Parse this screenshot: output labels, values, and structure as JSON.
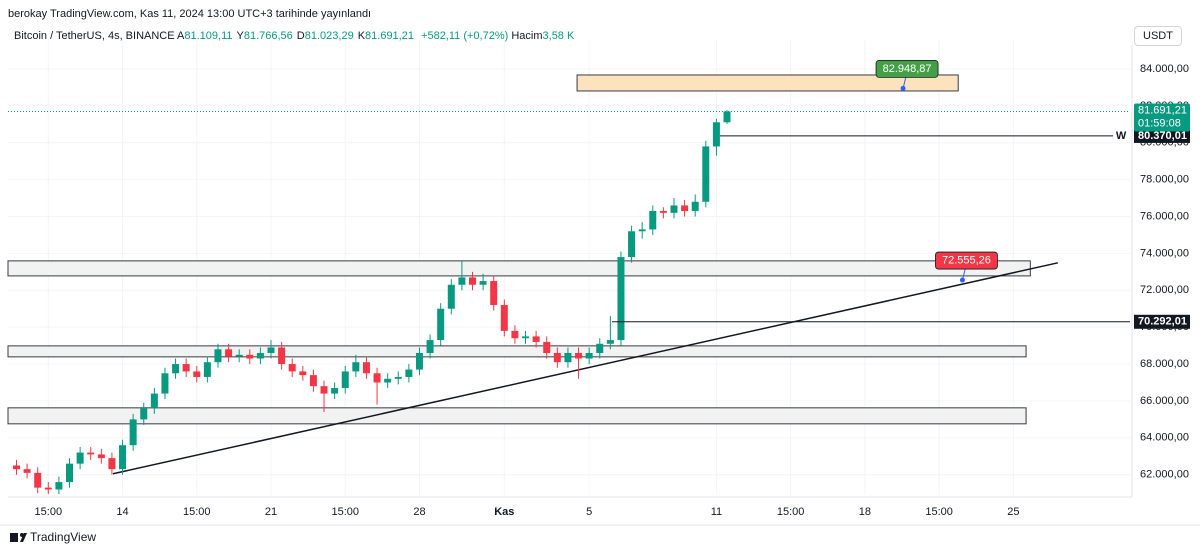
{
  "chart_data": {
    "type": "candlestick",
    "title": "berokay TradingView.com, Kas 11, 2024 13:00 UTC+3 tarihinde yayınlandı",
    "symbol": "Bitcoin / TetherUS, 4s, BINANCE",
    "ohlc_fields": [
      {
        "key": "A",
        "value": "81.109,11"
      },
      {
        "key": "Y",
        "value": "81.766,56"
      },
      {
        "key": "D",
        "value": "81.023,29"
      },
      {
        "key": "K",
        "value": "81.691,21"
      }
    ],
    "change": "+582,11 (+0,72%)",
    "volume": {
      "key": "Hacim",
      "value": "3,58 K"
    },
    "currency": "USDT",
    "brand": "TradingView",
    "up_color": "#089981",
    "down_color": "#f23645",
    "grid": true,
    "x": [
      -5,
      -4.5,
      -4,
      -3.5,
      -3,
      -2.5,
      -2,
      -1.5,
      -1,
      -0.5,
      0,
      0.5,
      1,
      1.5,
      2,
      2.5,
      3,
      3.5,
      4,
      4.5,
      5,
      5.5,
      6,
      6.5,
      7,
      7.5,
      8,
      8.5,
      9,
      9.5,
      10,
      10.5,
      11,
      11.5,
      12,
      12.5,
      13,
      13.5,
      14,
      14.5,
      15,
      15.5,
      16,
      16.5,
      17,
      17.5,
      18,
      18.5,
      19,
      19.5,
      20,
      20.5,
      21,
      21.5,
      22,
      22.5,
      23,
      23.5,
      24,
      24.5,
      25,
      25.5,
      26,
      26.5,
      27,
      27.5,
      28,
      28.5
    ],
    "open": [
      62500,
      62300,
      62100,
      61300,
      61200,
      61600,
      62600,
      63200,
      63100,
      62900,
      62300,
      63600,
      65000,
      65600,
      66400,
      67500,
      68000,
      67600,
      67300,
      68100,
      68800,
      68400,
      68500,
      68300,
      68600,
      68900,
      68000,
      67600,
      67400,
      66800,
      66400,
      66700,
      67600,
      68100,
      67500,
      67000,
      67200,
      67300,
      67700,
      68600,
      69300,
      71000,
      72300,
      72700,
      72300,
      72500,
      71200,
      69800,
      69400,
      69500,
      69200,
      68600,
      68100,
      68600,
      68300,
      68600,
      69100,
      69300,
      73800,
      75200,
      75300,
      76300,
      76200,
      76600,
      76300,
      76800,
      79800,
      81109.11
    ],
    "high": [
      62800,
      62600,
      62400,
      61600,
      61900,
      62900,
      63500,
      63500,
      63400,
      63200,
      63900,
      65300,
      65900,
      66700,
      67800,
      68300,
      68300,
      67900,
      68400,
      69100,
      69100,
      68800,
      68800,
      68900,
      69300,
      69200,
      68300,
      67900,
      67700,
      67100,
      67000,
      67900,
      68500,
      68400,
      67800,
      67500,
      67600,
      68000,
      68900,
      69600,
      71300,
      72600,
      73600,
      73000,
      72900,
      72800,
      71500,
      70100,
      69800,
      69800,
      69500,
      68900,
      68900,
      68900,
      68900,
      69400,
      70600,
      74100,
      75500,
      75700,
      76600,
      76500,
      77000,
      76900,
      77200,
      80100,
      81300,
      81766.56
    ],
    "low": [
      62000,
      61800,
      61000,
      60950,
      60950,
      61300,
      62300,
      62800,
      62600,
      62000,
      62000,
      63300,
      64700,
      65300,
      66100,
      67200,
      67300,
      67000,
      67000,
      67800,
      68100,
      68100,
      68000,
      68000,
      68300,
      67700,
      67300,
      67100,
      66500,
      65400,
      66100,
      66400,
      67300,
      67200,
      65800,
      66700,
      66900,
      67000,
      67400,
      68300,
      69000,
      70700,
      72000,
      72000,
      72000,
      70900,
      69500,
      69100,
      69100,
      68900,
      68300,
      67800,
      67800,
      67200,
      68000,
      68300,
      68800,
      69000,
      73500,
      74800,
      75000,
      75900,
      75900,
      76000,
      76000,
      76500,
      79300,
      81023.29
    ],
    "close": [
      62300,
      62100,
      61300,
      61200,
      61600,
      62600,
      63200,
      63100,
      62900,
      62300,
      63600,
      65000,
      65600,
      66400,
      67500,
      68000,
      67600,
      67300,
      68100,
      68800,
      68400,
      68500,
      68300,
      68600,
      68900,
      68000,
      67600,
      67400,
      66800,
      66400,
      66700,
      67600,
      68100,
      67500,
      67000,
      67200,
      67300,
      67700,
      68600,
      69300,
      71000,
      72300,
      72700,
      72300,
      72500,
      71200,
      69800,
      69400,
      69500,
      69200,
      68600,
      68100,
      68600,
      68300,
      68600,
      69100,
      69300,
      73800,
      75200,
      75300,
      76300,
      76200,
      76600,
      76300,
      76800,
      79800,
      81109.11,
      81691.21
    ],
    "xlim": [
      -5.4,
      47.5
    ],
    "xticks": [
      {
        "value": -3.5,
        "label": "15:00"
      },
      {
        "value": 0,
        "label": "14"
      },
      {
        "value": 3.5,
        "label": "15:00"
      },
      {
        "value": 7,
        "label": "21"
      },
      {
        "value": 10.5,
        "label": "15:00"
      },
      {
        "value": 14,
        "label": "28"
      },
      {
        "value": 18,
        "label": "Kas"
      },
      {
        "value": 22,
        "label": "5"
      },
      {
        "value": 28,
        "label": "11"
      },
      {
        "value": 31.5,
        "label": "15:00"
      },
      {
        "value": 35,
        "label": "18"
      },
      {
        "value": 38.5,
        "label": "15:00"
      },
      {
        "value": 42,
        "label": "25"
      }
    ],
    "ylim": [
      60900,
      85300
    ],
    "yticks": [
      {
        "value": 62000,
        "label": "62.000,00"
      },
      {
        "value": 64000,
        "label": "64.000,00"
      },
      {
        "value": 66000,
        "label": "66.000,00"
      },
      {
        "value": 68000,
        "label": "68.000,00"
      },
      {
        "value": 70000,
        "label": "70.000,00"
      },
      {
        "value": 72000,
        "label": "72.000,00"
      },
      {
        "value": 74000,
        "label": "74.000,00"
      },
      {
        "value": 76000,
        "label": "76.000,00"
      },
      {
        "value": 78000,
        "label": "78.000,00"
      },
      {
        "value": 80000,
        "label": "80.000,00"
      },
      {
        "value": 82000,
        "label": "82.000,00"
      },
      {
        "value": 84000,
        "label": "84.000,00"
      }
    ],
    "zones": [
      {
        "x": [
          21.43,
          39.4
        ],
        "top": 83675,
        "bottom": 82808,
        "color": "#fde3bd"
      },
      {
        "x": [
          -5.4,
          42.8
        ],
        "top": 73595,
        "bottom": 72780,
        "color": "#f2f2f2"
      },
      {
        "x": [
          -5.4,
          42.6
        ],
        "top": 68986,
        "bottom": 68390,
        "color": "#f2f2f2"
      },
      {
        "x": [
          -5.4,
          42.6
        ],
        "top": 65626,
        "bottom": 64759,
        "color": "#f2f2f2"
      }
    ],
    "hlines": [
      {
        "value": 80370.01,
        "label": "80.370,01",
        "x": [
          28.17,
          46.7
        ],
        "tag": "W"
      },
      {
        "value": 70292.01,
        "label": "70.292,01",
        "x": [
          23.08,
          47.5
        ]
      }
    ],
    "trendline": {
      "x": [
        -0.45,
        44.1
      ],
      "y": [
        62050,
        73490
      ]
    },
    "price_labels": [
      {
        "text": "82.948,87",
        "value": 82948.87,
        "x": 36.8,
        "color": "#43a047"
      },
      {
        "text": "72.555,26",
        "value": 72555.26,
        "x": 39.6,
        "color": "#f23645"
      }
    ],
    "last_price": {
      "value": 81691.21,
      "label": "81.691,21",
      "countdown": "01:59:08"
    }
  }
}
